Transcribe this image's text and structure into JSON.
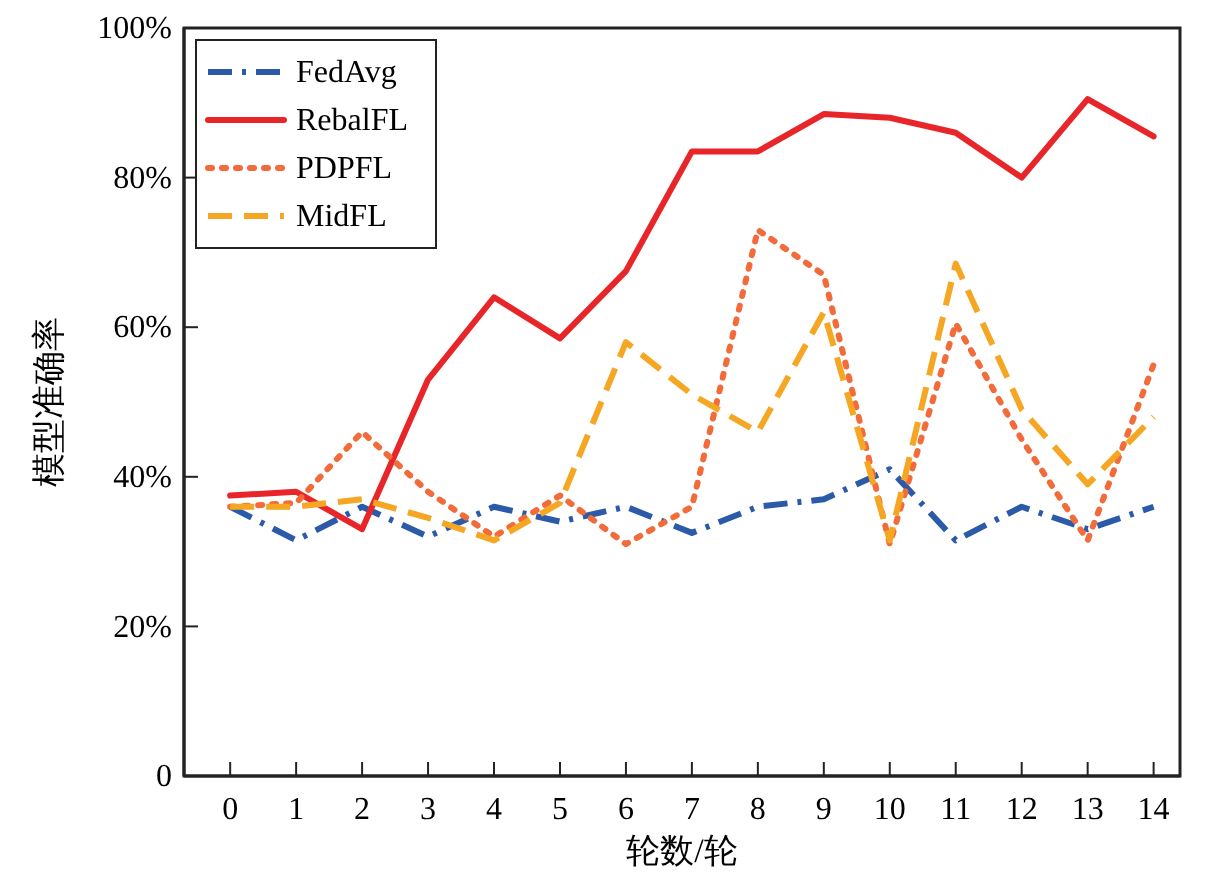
{
  "chart_data": {
    "type": "line",
    "xlabel": "轮数/轮",
    "ylabel": "模型准确率",
    "x": [
      0,
      1,
      2,
      3,
      4,
      5,
      6,
      7,
      8,
      9,
      10,
      11,
      12,
      13,
      14
    ],
    "xlim": [
      -0.7,
      14.4
    ],
    "xticks": [
      0,
      1,
      2,
      3,
      4,
      5,
      6,
      7,
      8,
      9,
      10,
      11,
      12,
      13,
      14
    ],
    "ylim": [
      0,
      100
    ],
    "yticks": [
      {
        "value": 0,
        "label": "0"
      },
      {
        "value": 20,
        "label": "20%"
      },
      {
        "value": 40,
        "label": "40%"
      },
      {
        "value": 60,
        "label": "60%"
      },
      {
        "value": 80,
        "label": "80%"
      },
      {
        "value": 100,
        "label": "100%"
      }
    ],
    "grid": false,
    "legend": "top left",
    "marker": "none",
    "series": [
      {
        "name": "FedAvg",
        "color": "#2b5aa8",
        "line_style": "dashdot",
        "values": [
          36,
          31.5,
          36,
          32,
          36,
          34,
          36,
          32.5,
          36,
          37,
          41,
          31.5,
          36,
          33,
          36
        ]
      },
      {
        "name": "RebalFL",
        "color": "#e8262a",
        "line_style": "solid",
        "values": [
          37.5,
          38,
          33,
          53,
          64,
          58.5,
          67.5,
          83.5,
          83.5,
          88.5,
          88,
          86,
          80,
          90.5,
          85.5
        ]
      },
      {
        "name": "PDPFL",
        "color": "#f26b3a",
        "line_style": "dotted",
        "values": [
          36,
          36.5,
          46,
          38,
          32,
          37.5,
          31,
          36,
          73,
          67,
          31,
          60.5,
          45,
          31.5,
          55
        ]
      },
      {
        "name": "MidFL",
        "color": "#f5a623",
        "line_style": "dashed",
        "values": [
          36,
          36,
          37,
          34.5,
          31.5,
          36.5,
          58,
          51,
          46,
          62,
          31.5,
          68.5,
          49,
          39,
          48
        ]
      }
    ]
  }
}
